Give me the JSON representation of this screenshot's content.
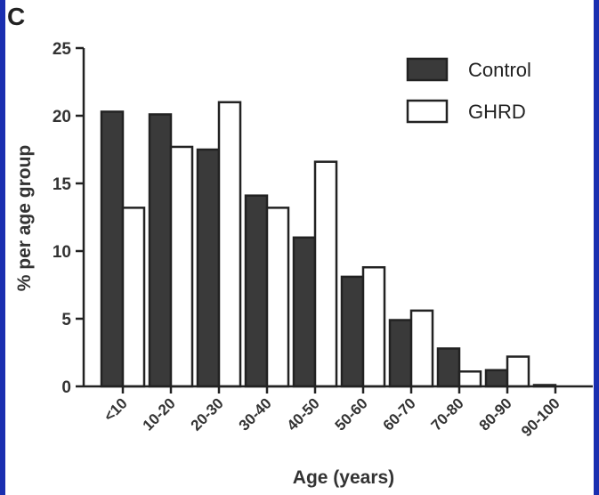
{
  "panel_label": "C",
  "chart_data": {
    "type": "bar",
    "categories": [
      "<10",
      "10-20",
      "20-30",
      "30-40",
      "40-50",
      "50-60",
      "60-70",
      "70-80",
      "80-90",
      "90-100"
    ],
    "series": [
      {
        "name": "Control",
        "values": [
          20.3,
          20.1,
          17.5,
          14.1,
          11.0,
          8.1,
          4.9,
          2.8,
          1.2,
          0.1
        ],
        "color": "#3a3a3a"
      },
      {
        "name": "GHRD",
        "values": [
          13.2,
          17.7,
          21.0,
          13.2,
          16.6,
          8.8,
          5.6,
          1.1,
          2.2,
          0.0
        ],
        "color": "#ffffff"
      }
    ],
    "xlabel": "Age (years)",
    "ylabel": "%  per age group",
    "ylim": [
      0,
      25
    ],
    "yticks": [
      0,
      5,
      10,
      15,
      20,
      25
    ],
    "grid": false,
    "legend_position": "top-right"
  }
}
